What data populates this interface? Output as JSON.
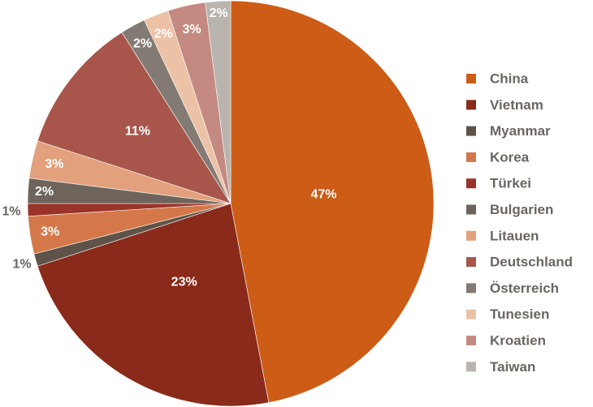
{
  "chart_data": {
    "type": "pie",
    "title": "",
    "legend_position": "right",
    "slices": [
      {
        "label": "China",
        "value": 47,
        "value_label": "47%",
        "color": "#cd5c17"
      },
      {
        "label": "Vietnam",
        "value": 23,
        "value_label": "23%",
        "color": "#8a2a1a"
      },
      {
        "label": "Myanmar",
        "value": 1,
        "value_label": "1%",
        "color": "#5f5349"
      },
      {
        "label": "Korea",
        "value": 3,
        "value_label": "3%",
        "color": "#d4784a"
      },
      {
        "label": "Türkei",
        "value": 1,
        "value_label": "1%",
        "color": "#9a3328"
      },
      {
        "label": "Bulgarien",
        "value": 2,
        "value_label": "2%",
        "color": "#6e645b"
      },
      {
        "label": "Litauen",
        "value": 3,
        "value_label": "3%",
        "color": "#e2a07c"
      },
      {
        "label": "Deutschland",
        "value": 11,
        "value_label": "11%",
        "color": "#a8564b"
      },
      {
        "label": "Österreich",
        "value": 2,
        "value_label": "2%",
        "color": "#837b73"
      },
      {
        "label": "Tunesien",
        "value": 2,
        "value_label": "2%",
        "color": "#ecc2a6"
      },
      {
        "label": "Kroatien",
        "value": 3,
        "value_label": "3%",
        "color": "#c48a82"
      },
      {
        "label": "Taiwan",
        "value": 2,
        "value_label": "2%",
        "color": "#b9b4ae"
      }
    ]
  }
}
